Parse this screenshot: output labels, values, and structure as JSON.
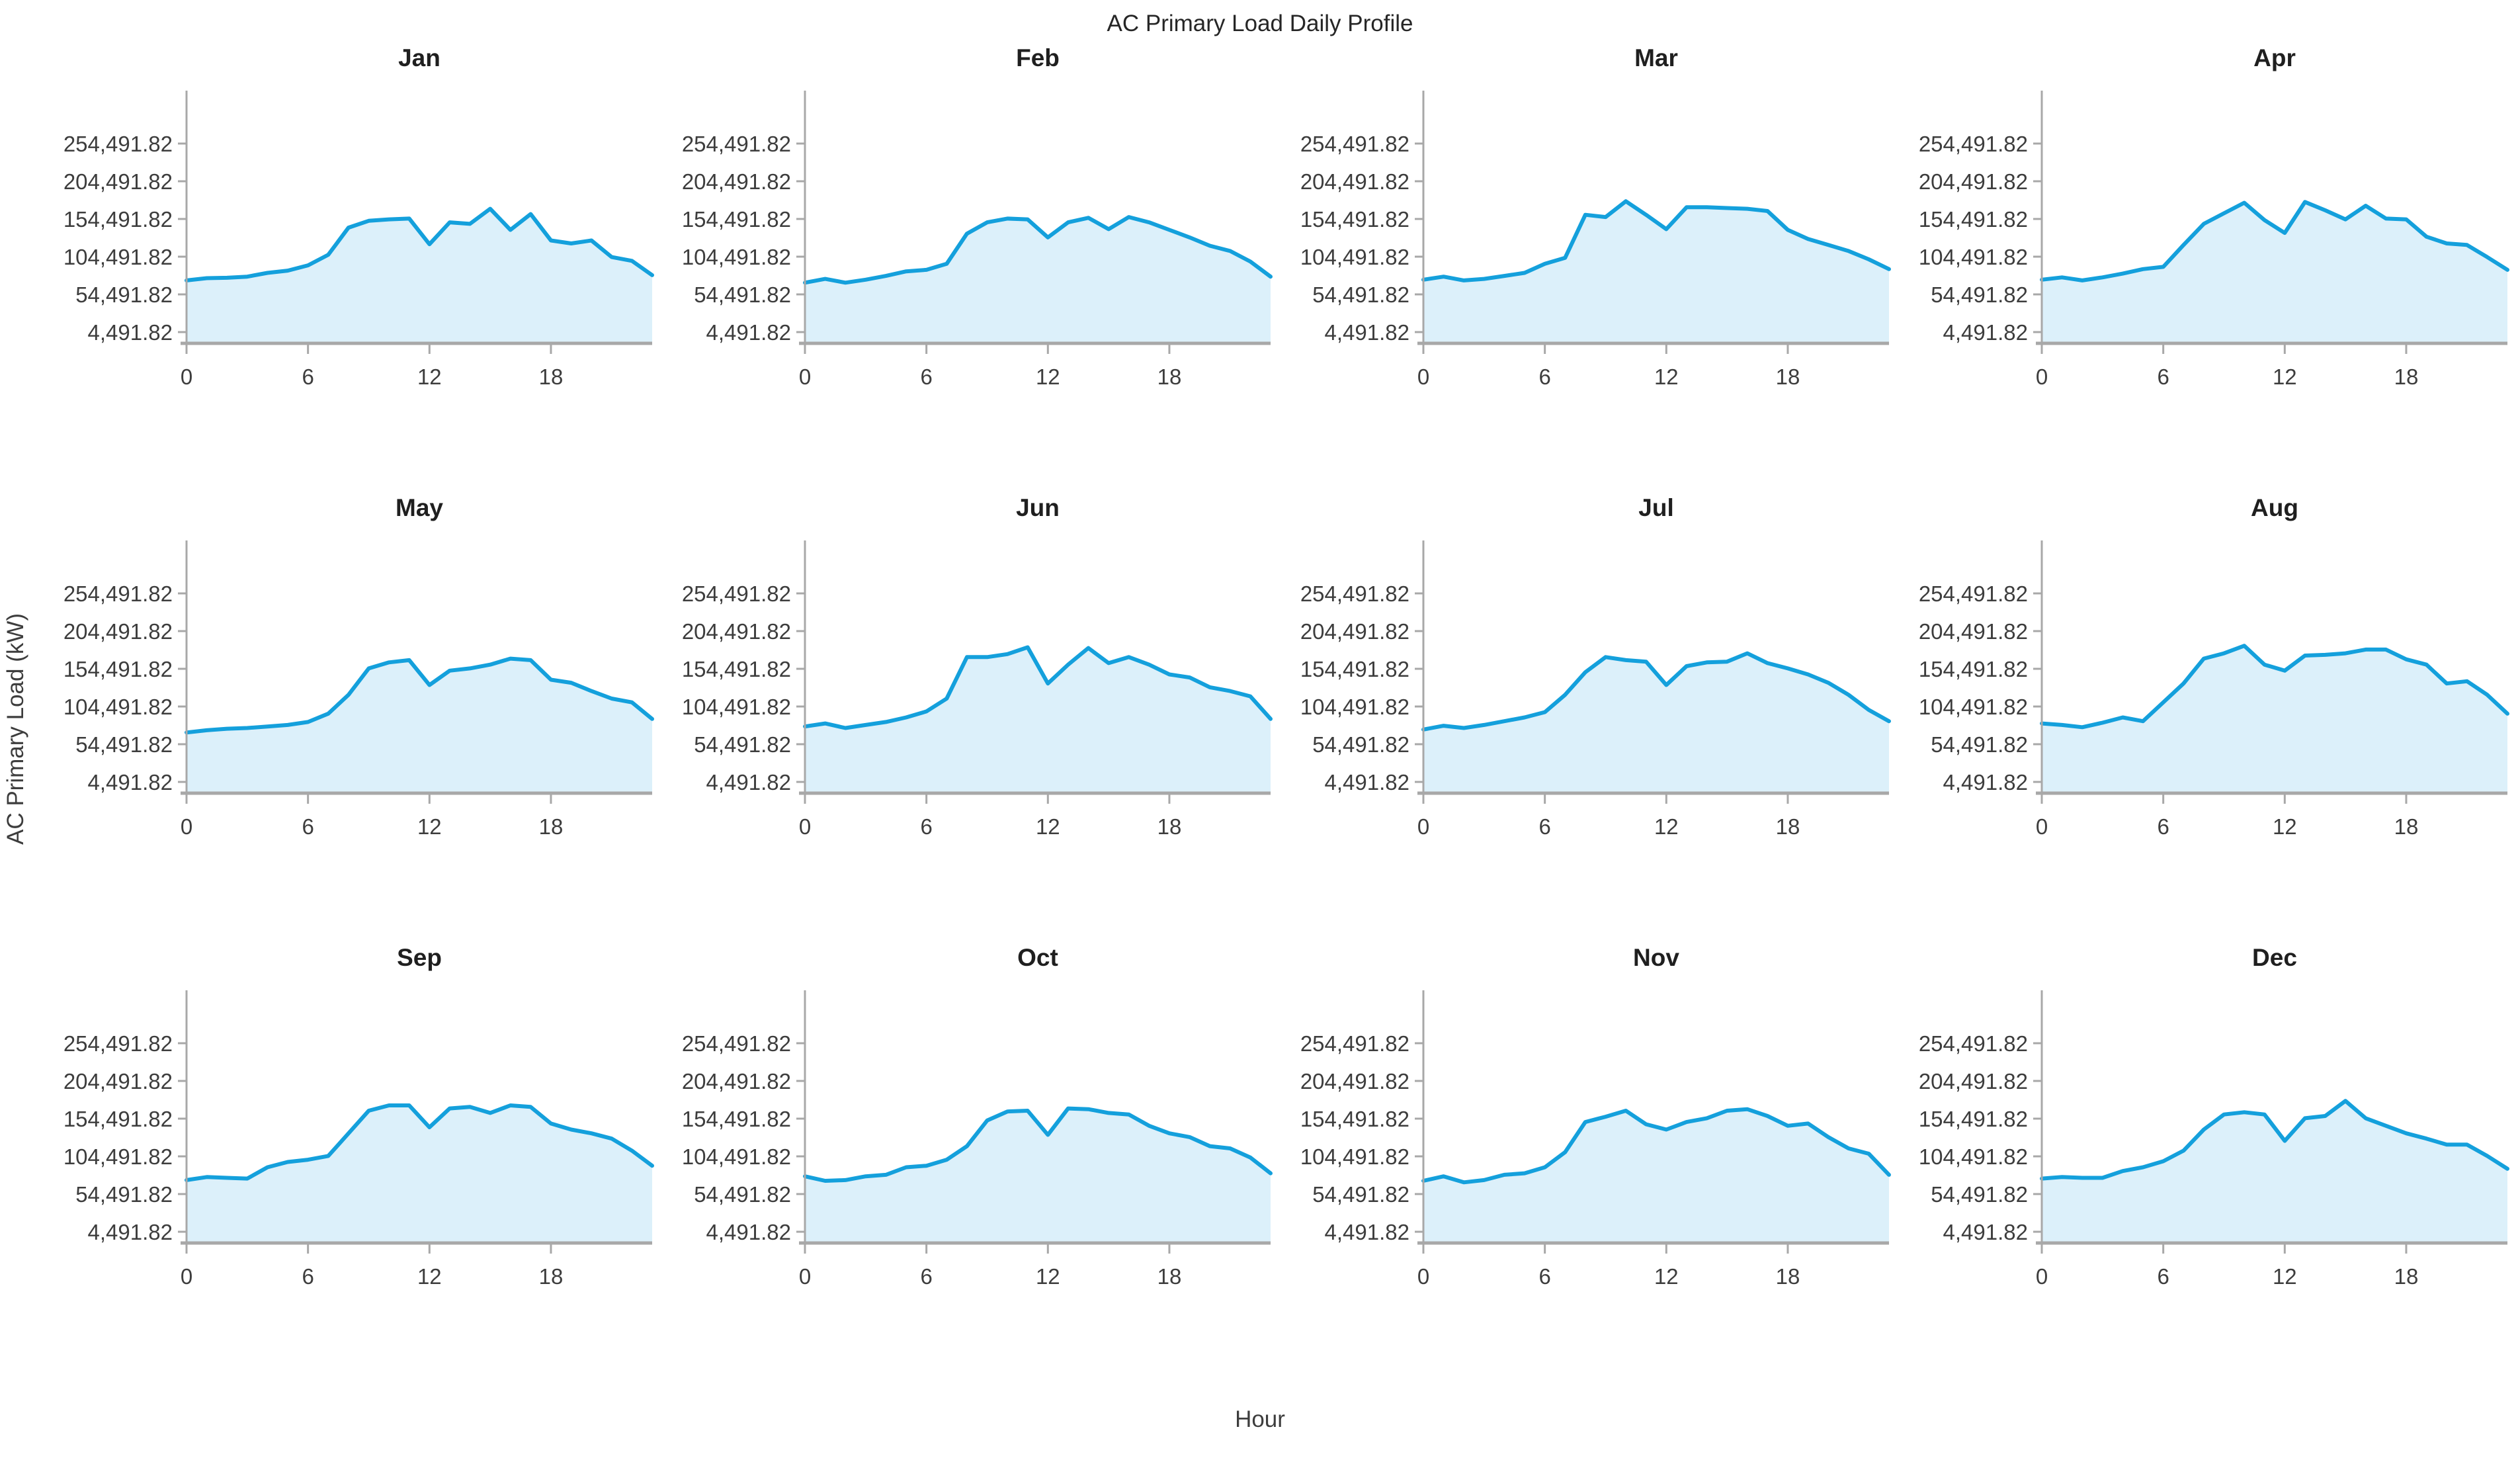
{
  "chart_data": {
    "type": "area",
    "title": "AC Primary Load Daily Profile",
    "xlabel": "Hour",
    "ylabel": "AC Primary Load (kW)",
    "x": [
      0,
      1,
      2,
      3,
      4,
      5,
      6,
      7,
      8,
      9,
      10,
      11,
      12,
      13,
      14,
      15,
      16,
      17,
      18,
      19,
      20,
      21,
      22,
      23
    ],
    "xticks": [
      0,
      6,
      12,
      18
    ],
    "yticks": [
      4491.82,
      54491.82,
      104491.82,
      154491.82,
      204491.82,
      254491.82
    ],
    "ytick_labels": [
      "4,491.82",
      "54,491.82",
      "104,491.82",
      "154,491.82",
      "204,491.82",
      "254,491.82"
    ],
    "ylim": [
      4491.82,
      304491.82
    ],
    "xlim": [
      0,
      23
    ],
    "grid": false,
    "legend": false,
    "line_color": "#14a0dc",
    "fill_color": "#dcf0fa",
    "axis_color": "#a8a8a8",
    "series": [
      {
        "name": "Jan",
        "values": [
          73000,
          76000,
          76500,
          78000,
          83000,
          86000,
          93000,
          107000,
          143000,
          152000,
          154000,
          155000,
          121000,
          150000,
          148000,
          168000,
          140000,
          161000,
          126000,
          122000,
          126000,
          104000,
          99000,
          80000
        ]
      },
      {
        "name": "Feb",
        "values": [
          70000,
          75000,
          70000,
          74000,
          79000,
          85000,
          87000,
          95000,
          135000,
          150000,
          155000,
          154000,
          130000,
          150000,
          156000,
          141000,
          157000,
          150000,
          140000,
          130000,
          119000,
          112000,
          98000,
          78000
        ]
      },
      {
        "name": "Mar",
        "values": [
          74000,
          78000,
          73000,
          75000,
          79000,
          83000,
          95000,
          103000,
          160000,
          157000,
          178000,
          160000,
          141000,
          170000,
          170000,
          169000,
          168000,
          165000,
          140000,
          128000,
          120000,
          112000,
          101000,
          88000
        ]
      },
      {
        "name": "Apr",
        "values": [
          74000,
          77000,
          73000,
          77000,
          82000,
          88000,
          91000,
          120000,
          148000,
          162000,
          176000,
          153000,
          136000,
          177000,
          166000,
          154000,
          172000,
          155000,
          154000,
          131000,
          122000,
          120000,
          104000,
          87000
        ]
      },
      {
        "name": "May",
        "values": [
          70000,
          73000,
          75000,
          76000,
          78000,
          80000,
          84000,
          95000,
          120000,
          155000,
          163000,
          166000,
          133000,
          152000,
          155000,
          160000,
          168000,
          166000,
          140000,
          136000,
          125000,
          115000,
          110000,
          88000
        ]
      },
      {
        "name": "Jun",
        "values": [
          78000,
          82000,
          76000,
          80000,
          84000,
          90000,
          98000,
          115000,
          170000,
          170000,
          174000,
          183000,
          135000,
          160000,
          182000,
          162000,
          170000,
          160000,
          147000,
          143000,
          130000,
          125000,
          118000,
          88000
        ]
      },
      {
        "name": "Jul",
        "values": [
          74000,
          79000,
          76000,
          80000,
          85000,
          90000,
          97000,
          120000,
          150000,
          170000,
          166000,
          164000,
          133000,
          158000,
          163000,
          164000,
          175000,
          162000,
          155000,
          147000,
          136000,
          120000,
          100000,
          85000
        ]
      },
      {
        "name": "Aug",
        "values": [
          82000,
          80000,
          77000,
          83000,
          90000,
          85000,
          110000,
          135000,
          168000,
          175000,
          185000,
          160000,
          152000,
          172000,
          173000,
          175000,
          180000,
          180000,
          167000,
          160000,
          135000,
          138000,
          120000,
          95000
        ]
      },
      {
        "name": "Sep",
        "values": [
          73000,
          77000,
          76000,
          75000,
          90000,
          97000,
          100000,
          105000,
          135000,
          165000,
          172000,
          172000,
          143000,
          168000,
          170000,
          162000,
          172000,
          170000,
          148000,
          140000,
          135000,
          128000,
          112000,
          92000
        ]
      },
      {
        "name": "Oct",
        "values": [
          78000,
          72000,
          73000,
          78000,
          80000,
          90000,
          92000,
          100000,
          118000,
          152000,
          164000,
          165000,
          133000,
          168000,
          167000,
          162000,
          160000,
          145000,
          135000,
          130000,
          118000,
          115000,
          103000,
          82000
        ]
      },
      {
        "name": "Nov",
        "values": [
          72000,
          78000,
          70000,
          73000,
          80000,
          82000,
          90000,
          110000,
          150000,
          157000,
          165000,
          147000,
          140000,
          150000,
          155000,
          165000,
          167000,
          158000,
          145000,
          148000,
          130000,
          115000,
          108000,
          80000
        ]
      },
      {
        "name": "Dec",
        "values": [
          75000,
          77000,
          76000,
          76000,
          85000,
          90000,
          98000,
          112000,
          140000,
          160000,
          163000,
          160000,
          125000,
          155000,
          158000,
          178000,
          155000,
          145000,
          135000,
          128000,
          120000,
          120000,
          105000,
          88000
        ]
      }
    ]
  }
}
